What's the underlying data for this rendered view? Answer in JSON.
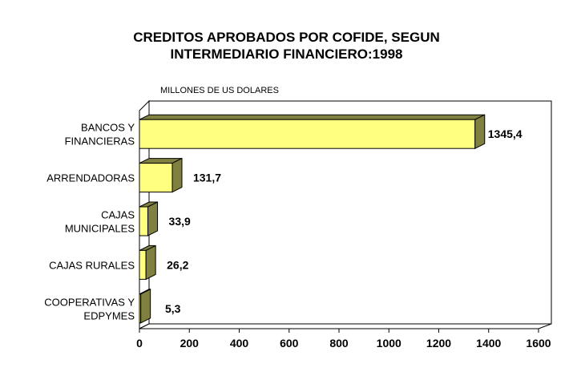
{
  "chart_data": {
    "type": "bar",
    "orientation": "horizontal",
    "title_lines": [
      "CREDITOS APROBADOS POR COFIDE, SEGUN",
      "INTERMEDIARIO FINANCIERO:1998"
    ],
    "unit_label": "MILLONES DE US DOLARES",
    "categories": [
      [
        "BANCOS Y",
        "FINANCIERAS"
      ],
      [
        "ARRENDADORAS"
      ],
      [
        "CAJAS",
        "MUNICIPALES"
      ],
      [
        "CAJAS RURALES"
      ],
      [
        "COOPERATIVAS Y",
        "EDPYMES"
      ]
    ],
    "values": [
      1345.4,
      131.7,
      33.9,
      26.2,
      5.3
    ],
    "value_labels": [
      "1345,4",
      "131,7",
      "33,9",
      "26,2",
      "5,3"
    ],
    "xlim": [
      0,
      1600
    ],
    "xticks": [
      "0",
      "200",
      "400",
      "600",
      "800",
      "1000",
      "1200",
      "1400",
      "1600"
    ],
    "grid": false,
    "colors": {
      "front": "#FFFF80",
      "side": "#808040"
    }
  }
}
